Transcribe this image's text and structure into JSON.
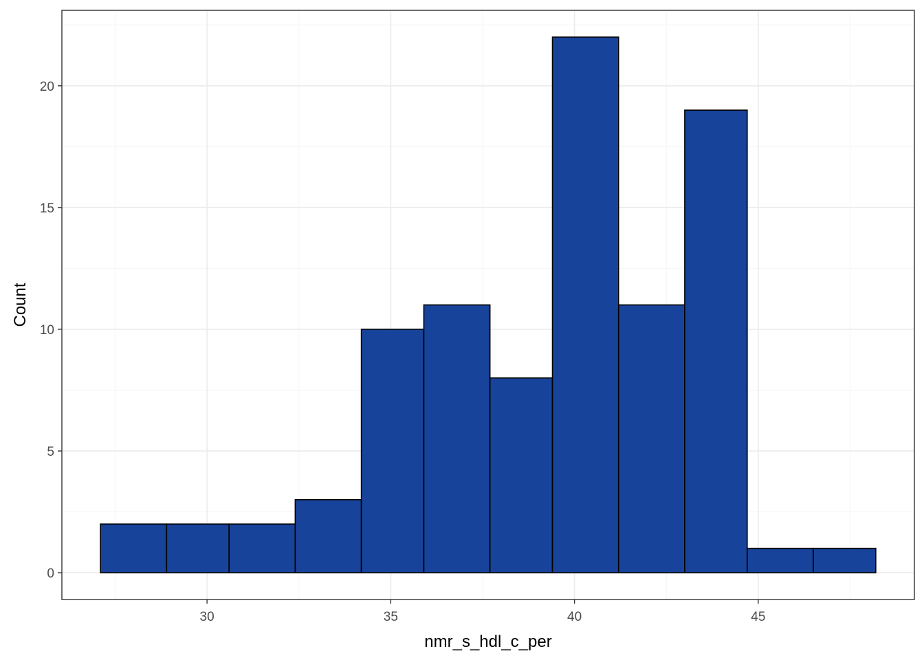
{
  "chart_data": {
    "type": "bar",
    "subtype": "histogram",
    "title": "",
    "xlabel": "nmr_s_hdl_c_per",
    "ylabel": "Count",
    "bins": [
      {
        "x0": 27.1,
        "x1": 28.9,
        "count": 2
      },
      {
        "x0": 28.9,
        "x1": 30.6,
        "count": 2
      },
      {
        "x0": 30.6,
        "x1": 32.4,
        "count": 2
      },
      {
        "x0": 32.4,
        "x1": 34.2,
        "count": 3
      },
      {
        "x0": 34.2,
        "x1": 35.9,
        "count": 10
      },
      {
        "x0": 35.9,
        "x1": 37.7,
        "count": 11
      },
      {
        "x0": 37.7,
        "x1": 39.4,
        "count": 8
      },
      {
        "x0": 39.4,
        "x1": 41.2,
        "count": 22
      },
      {
        "x0": 41.2,
        "x1": 43.0,
        "count": 11
      },
      {
        "x0": 43.0,
        "x1": 44.7,
        "count": 19
      },
      {
        "x0": 44.7,
        "x1": 46.5,
        "count": 1
      },
      {
        "x0": 46.5,
        "x1": 48.2,
        "count": 1
      }
    ],
    "xlim": [
      26.05,
      49.25
    ],
    "ylim": [
      -1.1,
      23.1
    ],
    "xticks": [
      30,
      35,
      40,
      45
    ],
    "xtick_labels": [
      "30",
      "35",
      "40",
      "45"
    ],
    "yticks": [
      0,
      5,
      10,
      15,
      20
    ],
    "ytick_labels": [
      "0",
      "5",
      "10",
      "15",
      "20"
    ],
    "grid": true,
    "legend": "none",
    "colors": {
      "bar_fill": "#18439A",
      "bar_stroke": "#000000",
      "grid_major": "#EBEBEB",
      "grid_minor": "#F5F5F5",
      "panel_border": "#333333",
      "tick_text": "#4D4D4D"
    }
  }
}
